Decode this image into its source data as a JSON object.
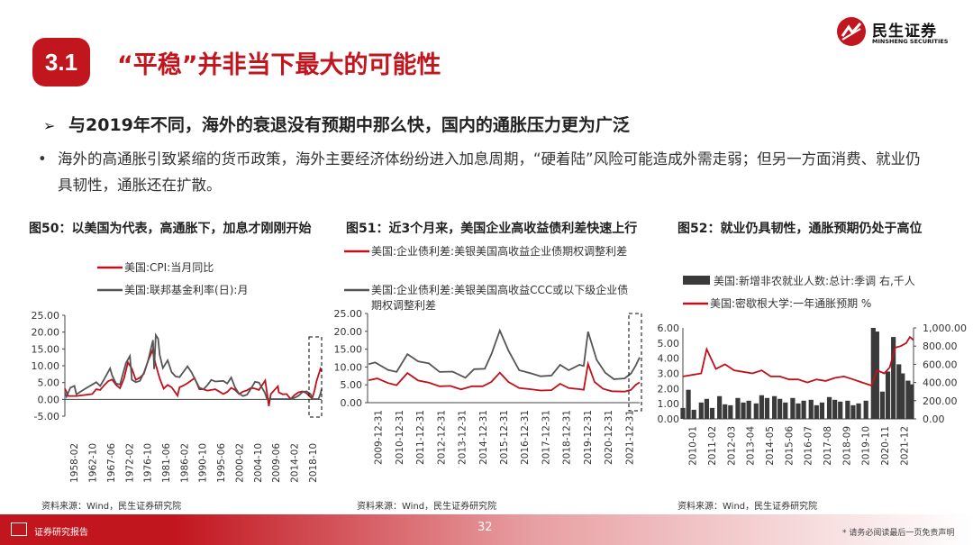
{
  "header": {
    "section_number": "3.1",
    "title": "“平稳”并非当下最大的可能性",
    "logo_cn": "民生证券",
    "logo_en": "MINSHENG SECURITIES"
  },
  "bullets": {
    "main": "与2019年不同，海外的衰退没有预期中那么快，国内的通胀压力更为广泛",
    "detail": "海外的高通胀引致紧缩的货币政策，海外主要经济体纷纷进入加息周期，“硬着陆”风险可能造成外需走弱；但另一方面消费、就业仍具韧性，通胀还在扩散。"
  },
  "footer": {
    "label": "证券研究报告",
    "page": "32",
    "disclaimer": "* 请务必阅读最后一页免责声明"
  },
  "colors": {
    "red": "#c0101a",
    "gray": "#555555",
    "bar": "#3a3a3a",
    "brand": "#c2161f"
  },
  "chart_data": [
    {
      "figure_title": "图50：以美国为代表，高通胀下，加息才刚刚开始",
      "source": "资料来源：Wind，民生证券研究院",
      "type": "line",
      "legend": [
        "美国:CPI:当月同比",
        "美国:联邦基金利率(日):月"
      ],
      "ylim": [
        -5,
        25
      ],
      "yticks": [
        "25.00",
        "20.00",
        "15.00",
        "10.00",
        "5.00",
        "0.00",
        "-5.00"
      ],
      "xticks": [
        "1958-02",
        "1962-10",
        "1967-06",
        "1972-02",
        "1976-10",
        "1981-06",
        "1986-02",
        "1990-10",
        "1995-06",
        "2000-02",
        "2004-10",
        "2009-06",
        "2014-02",
        "2018-10"
      ],
      "xrange": [
        1958.1,
        2022.8
      ],
      "series": [
        {
          "name": "美国:CPI:当月同比",
          "color": "#c0101a",
          "x": [
            1958.1,
            1959,
            1961,
            1963,
            1965,
            1966,
            1967,
            1968,
            1969,
            1970,
            1971,
            1972,
            1973,
            1974,
            1975,
            1976,
            1977,
            1978,
            1979,
            1980.2,
            1981,
            1982,
            1983,
            1984,
            1985,
            1986.5,
            1987,
            1988,
            1989,
            1990.8,
            1992,
            1993,
            1994,
            1995,
            1996,
            1997,
            1998,
            1999,
            2000,
            2001,
            2002,
            2003,
            2004,
            2005,
            2006,
            2007,
            2008.6,
            2009.5,
            2010,
            2011.8,
            2012,
            2013,
            2014,
            2015,
            2016,
            2017,
            2018,
            2019,
            2020.4,
            2021,
            2021.5,
            2022.5,
            2022.8
          ],
          "y": [
            3.2,
            1.0,
            1.0,
            1.3,
            1.6,
            3.0,
            2.8,
            4.2,
            5.4,
            5.9,
            4.3,
            3.3,
            6.2,
            11.0,
            9.1,
            5.8,
            6.5,
            7.6,
            11.3,
            14.6,
            10.3,
            6.2,
            3.2,
            4.3,
            3.6,
            1.1,
            3.6,
            4.1,
            4.8,
            6.3,
            3.0,
            3.0,
            2.6,
            2.8,
            3.0,
            2.3,
            1.6,
            2.2,
            3.4,
            2.8,
            1.6,
            2.3,
            2.7,
            3.4,
            3.2,
            2.8,
            5.6,
            -2.0,
            1.6,
            3.9,
            2.1,
            1.5,
            1.6,
            0.1,
            1.3,
            2.1,
            2.4,
            1.8,
            0.2,
            2.6,
            5.4,
            9.1,
            8.3
          ]
        },
        {
          "name": "美国:联邦基金利率(日):月",
          "color": "#555555",
          "x": [
            1958.1,
            1958.5,
            1959.5,
            1960.5,
            1961,
            1963,
            1966,
            1967,
            1968,
            1969.5,
            1970,
            1971,
            1972,
            1973.5,
            1974.5,
            1975,
            1976,
            1977,
            1978,
            1979,
            1980.3,
            1980.6,
            1981,
            1981.6,
            1982,
            1982.8,
            1984,
            1985,
            1986,
            1987,
            1989,
            1990,
            1991,
            1992,
            1993,
            1994,
            1995,
            1996,
            1998,
            1999,
            2000,
            2001,
            2002,
            2003,
            2004,
            2005,
            2006,
            2007,
            2008.5,
            2009,
            2010,
            2013,
            2015,
            2016,
            2017,
            2018,
            2019,
            2020,
            2020.5,
            2021,
            2022,
            2022.5,
            2022.8
          ],
          "y": [
            2.0,
            0.8,
            3.5,
            4.0,
            1.5,
            3.0,
            5.1,
            4.0,
            6.0,
            9.2,
            7.2,
            4.7,
            4.4,
            10.8,
            12.9,
            5.8,
            5.1,
            5.5,
            7.9,
            11.2,
            17.6,
            9.0,
            19.1,
            18.0,
            13.2,
            9.3,
            11.6,
            8.1,
            6.8,
            6.6,
            9.8,
            8.1,
            5.7,
            3.5,
            3.0,
            4.2,
            5.8,
            5.3,
            5.5,
            4.7,
            6.5,
            3.5,
            1.7,
            1.0,
            1.4,
            3.2,
            5.2,
            5.0,
            2.0,
            0.2,
            0.1,
            0.1,
            0.1,
            0.5,
            1.1,
            2.2,
            2.4,
            1.6,
            0.1,
            0.1,
            0.1,
            1.7,
            3.0
          ]
        }
      ]
    },
    {
      "figure_title": "图51：近3个月来，美国企业高收益债利差快速上行",
      "source": "资料来源：Wind，民生证券研究院",
      "type": "line",
      "legend": [
        "美国:企业债利差:美银美国高收益企业债期权调整利差",
        "美国:企业债利差:美银美国高收益CCC或以下级企业债期权调整利差"
      ],
      "ylim": [
        0,
        25
      ],
      "yticks": [
        "25.00",
        "20.00",
        "15.00",
        "10.00",
        "5.00",
        "0.00"
      ],
      "xticks": [
        "2009-12-31",
        "2010-12-31",
        "2011-12-31",
        "2012-12-31",
        "2013-12-31",
        "2014-12-31",
        "2015-12-31",
        "2016-12-31",
        "2017-12-31",
        "2018-12-31",
        "2019-12-31",
        "2020-12-31",
        "2021-12-31"
      ],
      "xrange": [
        2009.95,
        2022.6
      ],
      "series": [
        {
          "name": "美国:企业债利差:美银美国高收益企业债期权调整利差",
          "color": "#c0101a",
          "x": [
            2010.0,
            2010.4,
            2010.9,
            2011.3,
            2011.8,
            2012.3,
            2012.8,
            2013.3,
            2013.8,
            2014.3,
            2014.8,
            2015.3,
            2015.7,
            2016.1,
            2016.5,
            2017.0,
            2017.5,
            2018.0,
            2018.5,
            2018.9,
            2019.3,
            2019.8,
            2020.0,
            2020.2,
            2020.5,
            2020.9,
            2021.3,
            2021.9,
            2022.2,
            2022.4,
            2022.6
          ],
          "y": [
            6.3,
            6.8,
            5.5,
            4.9,
            8.3,
            6.2,
            5.6,
            4.6,
            4.7,
            3.7,
            4.6,
            4.6,
            5.8,
            8.4,
            5.8,
            4.1,
            3.8,
            3.4,
            3.5,
            5.3,
            4.1,
            3.8,
            3.6,
            10.9,
            5.8,
            3.9,
            3.2,
            3.1,
            3.6,
            4.9,
            5.7
          ]
        },
        {
          "name": "美国:企业债利差:美银美国高收益CCC或以下级企业债期权调整利差",
          "color": "#555555",
          "x": [
            2010.0,
            2010.3,
            2010.9,
            2011.3,
            2011.8,
            2012.3,
            2012.8,
            2013.3,
            2013.9,
            2014.5,
            2014.9,
            2015.4,
            2015.7,
            2016.1,
            2016.5,
            2017.0,
            2017.5,
            2018.0,
            2018.5,
            2018.9,
            2019.3,
            2019.8,
            2020.0,
            2020.2,
            2020.6,
            2021.0,
            2021.4,
            2021.9,
            2022.2,
            2022.4,
            2022.6
          ],
          "y": [
            10.8,
            11.3,
            9.2,
            8.6,
            13.6,
            11.6,
            11.0,
            8.6,
            8.7,
            7.0,
            9.4,
            9.5,
            13.5,
            20.2,
            14.6,
            9.1,
            8.3,
            7.4,
            7.6,
            10.6,
            9.1,
            10.6,
            10.3,
            19.9,
            12.0,
            8.4,
            6.6,
            6.8,
            8.2,
            10.2,
            12.7
          ]
        }
      ]
    },
    {
      "figure_title": "图52：就业仍具韧性，通胀预期仍处于高位",
      "source": "资料来源：Wind，民生证券研究院",
      "type": "bar+line",
      "legend": [
        "美国:新增非农就业人数:总计:季调 右,千人",
        "美国:密歇根大学:一年通胀预期 %"
      ],
      "left_ylim": [
        0,
        6
      ],
      "left_yticks": [
        "6.00",
        "5.00",
        "4.00",
        "3.00",
        "2.00",
        "1.00",
        "0.00"
      ],
      "right_ylim": [
        0,
        1000
      ],
      "right_yticks": [
        "1,000.00",
        "800.00",
        "600.00",
        "400.00",
        "200.00",
        "0.00"
      ],
      "xticks": [
        "2010-01",
        "2011-02",
        "2012-03",
        "2013-04",
        "2014-05",
        "2015-06",
        "2016-07",
        "2017-08",
        "2018-09",
        "2019-10",
        "2020-11",
        "2021-12"
      ],
      "xrange": [
        2010.0,
        2022.6
      ],
      "series": [
        {
          "name": "美国:新增非农就业人数:总计:季调 右,千人",
          "color": "#3a3a3a",
          "axis": "right",
          "x": [
            2010.0,
            2010.3,
            2010.6,
            2011.0,
            2011.3,
            2011.6,
            2012.0,
            2012.3,
            2012.6,
            2013.0,
            2013.3,
            2013.6,
            2014.0,
            2014.3,
            2014.6,
            2015.0,
            2015.3,
            2015.6,
            2016.0,
            2016.3,
            2016.6,
            2017.0,
            2017.3,
            2017.6,
            2018.0,
            2018.3,
            2018.6,
            2019.0,
            2019.3,
            2019.6,
            2020.0,
            2020.4,
            2020.6,
            2020.9,
            2021.2,
            2021.5,
            2021.8,
            2022.0,
            2022.3,
            2022.5
          ],
          "y": [
            120,
            320,
            100,
            180,
            220,
            120,
            250,
            160,
            150,
            230,
            180,
            200,
            170,
            260,
            230,
            250,
            220,
            180,
            230,
            170,
            200,
            210,
            150,
            180,
            240,
            210,
            190,
            200,
            150,
            170,
            200,
            1000,
            960,
            300,
            520,
            900,
            600,
            500,
            420,
            380
          ]
        },
        {
          "name": "美国:密歇根大学:一年通胀预期 %",
          "color": "#c0101a",
          "axis": "left",
          "x": [
            2010.0,
            2010.5,
            2011.0,
            2011.3,
            2011.8,
            2012.3,
            2012.8,
            2013.3,
            2013.8,
            2014.3,
            2014.8,
            2015.3,
            2015.8,
            2016.3,
            2016.8,
            2017.3,
            2017.8,
            2018.3,
            2018.8,
            2019.3,
            2019.8,
            2020.3,
            2020.6,
            2021.0,
            2021.3,
            2021.6,
            2021.9,
            2022.2,
            2022.4,
            2022.6
          ],
          "y": [
            2.8,
            2.9,
            3.0,
            4.6,
            3.3,
            3.6,
            3.2,
            3.1,
            3.0,
            3.2,
            2.8,
            2.8,
            2.6,
            2.6,
            2.4,
            2.6,
            2.5,
            2.7,
            2.8,
            2.6,
            2.4,
            2.2,
            3.2,
            3.0,
            3.4,
            4.7,
            4.8,
            5.0,
            5.4,
            5.2
          ]
        }
      ]
    }
  ]
}
